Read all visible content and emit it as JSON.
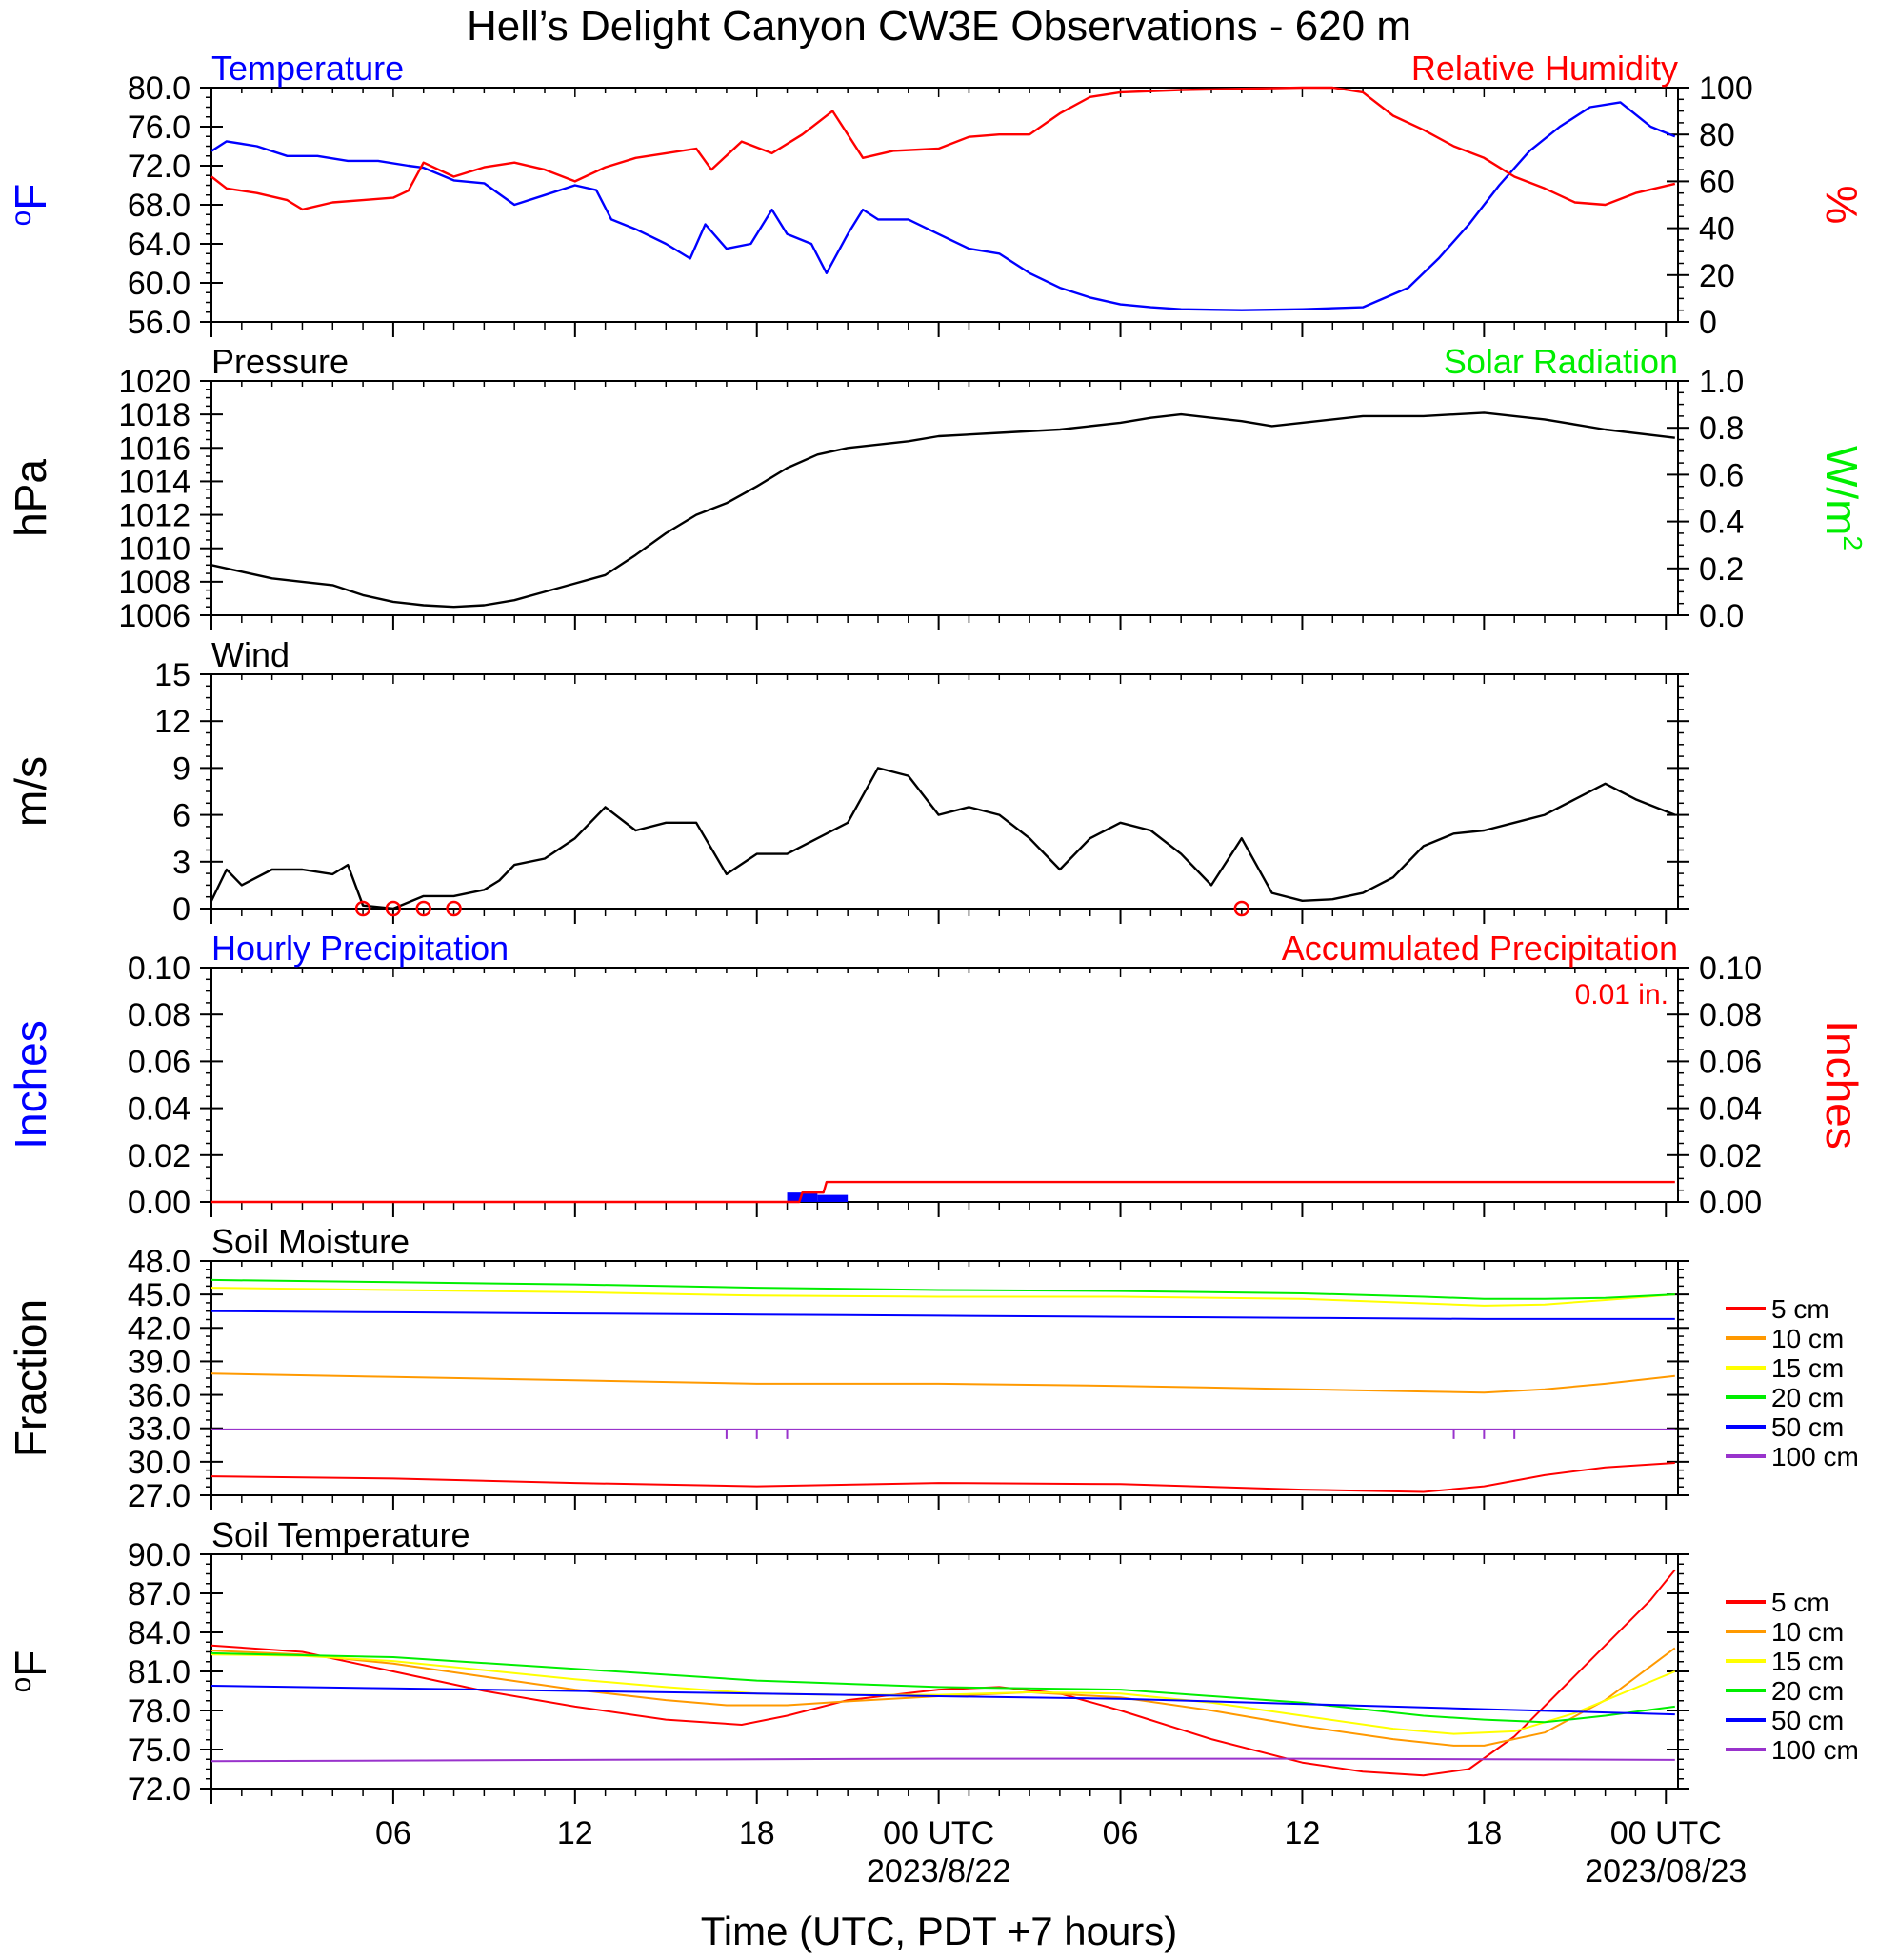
{
  "title": "Hell’s Delight Canyon CW3E Observations - 620 m",
  "x_axis": {
    "label": "Time (UTC, PDT +7 hours)",
    "range_hours": [
      0,
      48.4
    ],
    "tick_hours": [
      6,
      12,
      18,
      24,
      30,
      36,
      42,
      48
    ],
    "tick_labels": [
      "06",
      "12",
      "18",
      "00 UTC",
      "06",
      "12",
      "18",
      "00 UTC"
    ],
    "date_labels": [
      {
        "hour": 24,
        "text": "2023/8/22"
      },
      {
        "hour": 48,
        "text": "2023/08/23"
      }
    ]
  },
  "chart_data": [
    {
      "type": "line",
      "left_title": "Temperature",
      "right_title": "Relative Humidity",
      "left_unit": "oF",
      "right_unit": "%",
      "left_ticks": [
        "80.0",
        "76.0",
        "72.0",
        "68.0",
        "64.0",
        "60.0",
        "56.0"
      ],
      "right_ticks": [
        "100",
        "80",
        "60",
        "40",
        "20",
        "0"
      ],
      "ylim": [
        56,
        80
      ],
      "y2lim": [
        0,
        100
      ],
      "series": [
        {
          "name": "Temperature",
          "color": "#0000ff",
          "axis": "left",
          "x": [
            0,
            0.5,
            1.5,
            2.5,
            3.5,
            4.5,
            5.5,
            6.5,
            7.0,
            8.0,
            9.0,
            10.0,
            11.0,
            12.0,
            12.7,
            13.2,
            14.0,
            15.0,
            15.8,
            16.3,
            17.0,
            17.8,
            18.5,
            19.0,
            19.8,
            20.3,
            21.0,
            21.5,
            22.0,
            23.0,
            24.0,
            25.0,
            26.0,
            27.0,
            28.0,
            29.0,
            30.0,
            31.0,
            32.0,
            34.0,
            36.0,
            38.0,
            39.5,
            40.5,
            41.5,
            42.5,
            43.5,
            44.5,
            45.5,
            46.5,
            47.5,
            48.3
          ],
          "y": [
            73.5,
            74.5,
            74,
            73,
            73,
            72.5,
            72.5,
            72,
            71.8,
            70.5,
            70.2,
            68,
            69,
            70,
            69.5,
            66.5,
            65.5,
            64,
            62.5,
            66,
            63.5,
            64,
            67.5,
            65,
            64,
            61,
            65,
            67.5,
            66.5,
            66.5,
            65,
            63.5,
            63,
            61,
            59.5,
            58.5,
            57.8,
            57.5,
            57.3,
            57.2,
            57.3,
            57.5,
            59.5,
            62.5,
            66,
            70,
            73.5,
            76,
            78,
            78.5,
            76,
            75
          ]
        },
        {
          "name": "Relative Humidity",
          "color": "#ff0000",
          "axis": "right",
          "x": [
            0,
            0.5,
            1.5,
            2.5,
            3.0,
            4.0,
            5.0,
            6.0,
            6.5,
            7.0,
            8.0,
            9.0,
            10.0,
            11.0,
            12.0,
            13.0,
            14.0,
            15.0,
            16.0,
            16.5,
            17.5,
            18.5,
            19.5,
            20.5,
            21.5,
            22.5,
            24.0,
            25.0,
            26.0,
            27.0,
            28.0,
            29.0,
            30.0,
            32.0,
            34.0,
            36.0,
            37.0,
            38.0,
            39.0,
            40.0,
            41.0,
            42.0,
            43.0,
            44.0,
            45.0,
            46.0,
            47.0,
            48.3
          ],
          "y": [
            62,
            57,
            55,
            52,
            48,
            51,
            52,
            53,
            56,
            68,
            62,
            66,
            68,
            65,
            60,
            66,
            70,
            72,
            74,
            65,
            77,
            72,
            80,
            90,
            70,
            73,
            74,
            79,
            80,
            80,
            89,
            96,
            98,
            99,
            99.5,
            100,
            100,
            98,
            88,
            82,
            75,
            70,
            62,
            57,
            51,
            50,
            55,
            59
          ]
        }
      ]
    },
    {
      "type": "line",
      "left_title": "Pressure",
      "right_title": "Solar Radiation",
      "left_unit": "hPa",
      "right_unit": "W/m²",
      "left_ticks": [
        "1020",
        "1018",
        "1016",
        "1014",
        "1012",
        "1010",
        "1008",
        "1006"
      ],
      "right_ticks": [
        "1.0",
        "0.8",
        "0.6",
        "0.4",
        "0.2",
        "0.0"
      ],
      "ylim": [
        1006,
        1020
      ],
      "y2lim": [
        0,
        1.0
      ],
      "series": [
        {
          "name": "Pressure",
          "color": "#000000",
          "axis": "left",
          "x": [
            0,
            1,
            2,
            3,
            4,
            5,
            6,
            7,
            8,
            9,
            10,
            11,
            12,
            13,
            14,
            15,
            16,
            17,
            18,
            19,
            20,
            21,
            22,
            23,
            24,
            26,
            28,
            30,
            31,
            32,
            34,
            35,
            36,
            38,
            40,
            42,
            44,
            46,
            48.3
          ],
          "y": [
            1009,
            1008.6,
            1008.2,
            1008,
            1007.8,
            1007.2,
            1006.8,
            1006.6,
            1006.5,
            1006.6,
            1006.9,
            1007.4,
            1007.9,
            1008.4,
            1009.6,
            1010.9,
            1012,
            1012.7,
            1013.7,
            1014.8,
            1015.6,
            1016,
            1016.2,
            1016.4,
            1016.7,
            1016.9,
            1017.1,
            1017.5,
            1017.8,
            1018,
            1017.6,
            1017.3,
            1017.5,
            1017.9,
            1017.9,
            1018.1,
            1017.7,
            1017.1,
            1016.6
          ]
        }
      ]
    },
    {
      "type": "line",
      "left_title": "Wind",
      "left_unit": "m/s",
      "left_ticks": [
        "15",
        "12",
        "9",
        "6",
        "3",
        "0"
      ],
      "ylim": [
        0,
        15
      ],
      "calm_hours": [
        5,
        6,
        7,
        8,
        34
      ],
      "series": [
        {
          "name": "Wind",
          "color": "#000000",
          "axis": "left",
          "x": [
            0,
            0.5,
            1,
            2,
            3,
            4,
            4.5,
            5,
            6,
            7,
            8,
            9,
            9.5,
            10,
            11,
            12,
            13,
            14,
            15,
            16,
            17,
            18,
            19,
            20,
            21,
            22,
            23,
            24,
            25,
            26,
            27,
            28,
            29,
            30,
            31,
            32,
            33,
            34,
            35,
            36,
            37,
            38,
            39,
            40,
            41,
            42,
            43,
            44,
            45,
            46,
            47,
            48.3
          ],
          "y": [
            0.5,
            2.5,
            1.5,
            2.5,
            2.5,
            2.2,
            2.8,
            0.2,
            0,
            0.8,
            0.8,
            1.2,
            1.8,
            2.8,
            3.2,
            4.5,
            6.5,
            5,
            5.5,
            5.5,
            2.2,
            3.5,
            3.5,
            4.5,
            5.5,
            9,
            8.5,
            6,
            6.5,
            6,
            4.5,
            2.5,
            4.5,
            5.5,
            5,
            3.5,
            1.5,
            4.5,
            1,
            0.5,
            0.6,
            1,
            2,
            4,
            4.8,
            5,
            5.5,
            6,
            7,
            8,
            7,
            6
          ]
        }
      ]
    },
    {
      "type": "line",
      "left_title": "Hourly Precipitation",
      "right_title": "Accumulated Precipitation",
      "annotation": "0.01 in.",
      "left_unit": "Inches",
      "right_unit": "Inches",
      "left_ticks": [
        "0.10",
        "0.08",
        "0.06",
        "0.04",
        "0.02",
        "0.00"
      ],
      "right_ticks": [
        "0.10",
        "0.08",
        "0.06",
        "0.04",
        "0.02",
        "0.00"
      ],
      "ylim": [
        0,
        0.1
      ],
      "y2lim": [
        0,
        0.1
      ],
      "hourly_bars": [
        {
          "start_hour": 19,
          "end_hour": 20,
          "value": 0.004
        },
        {
          "start_hour": 20,
          "end_hour": 21,
          "value": 0.003
        }
      ],
      "series": [
        {
          "name": "Accumulated Precipitation",
          "color": "#ff0000",
          "axis": "right",
          "x": [
            0,
            19.4,
            19.5,
            20.2,
            20.3,
            48.3
          ],
          "y": [
            0,
            0,
            0.004,
            0.004,
            0.0085,
            0.0085
          ]
        }
      ]
    },
    {
      "type": "line",
      "left_title": "Soil Moisture",
      "left_unit": "Fraction",
      "left_ticks": [
        "48.0",
        "45.0",
        "42.0",
        "39.0",
        "36.0",
        "33.0",
        "30.0",
        "27.0"
      ],
      "ylim": [
        27,
        48
      ],
      "series": [
        {
          "name": "5 cm",
          "color": "#ff0000",
          "x": [
            0,
            6,
            12,
            18,
            24,
            30,
            36,
            40,
            42,
            44,
            46,
            48.3
          ],
          "y": [
            28.7,
            28.5,
            28.1,
            27.8,
            28.1,
            28,
            27.5,
            27.3,
            27.8,
            28.8,
            29.5,
            29.9
          ]
        },
        {
          "name": "10 cm",
          "color": "#ff9900",
          "x": [
            0,
            6,
            12,
            18,
            24,
            30,
            36,
            40,
            42,
            44,
            46,
            48.3
          ],
          "y": [
            37.9,
            37.6,
            37.3,
            37.0,
            37.0,
            36.8,
            36.5,
            36.3,
            36.2,
            36.5,
            37.0,
            37.7
          ]
        },
        {
          "name": "15 cm",
          "color": "#ffff00",
          "x": [
            0,
            6,
            12,
            18,
            24,
            30,
            36,
            40,
            42,
            44,
            46,
            48.3
          ],
          "y": [
            45.6,
            45.4,
            45.2,
            44.9,
            44.8,
            44.8,
            44.6,
            44.2,
            44.0,
            44.1,
            44.5,
            45.0
          ]
        },
        {
          "name": "20 cm",
          "color": "#00ee00",
          "x": [
            0,
            6,
            12,
            18,
            24,
            30,
            36,
            40,
            42,
            44,
            46,
            48.3
          ],
          "y": [
            46.3,
            46.1,
            45.9,
            45.6,
            45.4,
            45.3,
            45.1,
            44.8,
            44.6,
            44.6,
            44.7,
            45.0
          ]
        },
        {
          "name": "50 cm",
          "color": "#0000ff",
          "x": [
            0,
            6,
            12,
            18,
            24,
            30,
            36,
            42,
            48.3
          ],
          "y": [
            43.5,
            43.4,
            43.3,
            43.2,
            43.1,
            43.0,
            42.9,
            42.8,
            42.8
          ]
        },
        {
          "name": "100 cm",
          "color": "#9933cc",
          "x": [
            0,
            48.3
          ],
          "y": [
            32.9,
            32.9
          ],
          "dip_hours": [
            17,
            18,
            19,
            41,
            42,
            43
          ]
        }
      ]
    },
    {
      "type": "line",
      "left_title": "Soil Temperature",
      "left_unit": "oF",
      "left_ticks": [
        "90.0",
        "87.0",
        "84.0",
        "81.0",
        "78.0",
        "75.0",
        "72.0"
      ],
      "ylim": [
        72,
        90
      ],
      "series": [
        {
          "name": "5 cm",
          "color": "#ff0000",
          "x": [
            0,
            3,
            6,
            9,
            12,
            15,
            17.5,
            19,
            21,
            24,
            26,
            28,
            30,
            33,
            36,
            38,
            40,
            41.5,
            43,
            44.5,
            46,
            47.5,
            48.3
          ],
          "y": [
            83,
            82.5,
            81,
            79.5,
            78.3,
            77.3,
            76.9,
            77.6,
            78.8,
            79.6,
            79.8,
            79.3,
            78,
            75.8,
            74,
            73.3,
            73,
            73.5,
            76,
            79.5,
            83,
            86.5,
            88.8
          ]
        },
        {
          "name": "10 cm",
          "color": "#ff9900",
          "x": [
            0,
            3,
            6,
            9,
            12,
            15,
            17,
            19,
            21,
            24,
            27,
            30,
            33,
            36,
            39,
            41,
            42,
            44,
            46,
            48.3
          ],
          "y": [
            82.6,
            82.3,
            81.6,
            80.6,
            79.6,
            78.8,
            78.4,
            78.4,
            78.7,
            79.1,
            79.4,
            79.0,
            78.0,
            76.8,
            75.8,
            75.3,
            75.3,
            76.3,
            78.8,
            82.8
          ]
        },
        {
          "name": "15 cm",
          "color": "#ffff00",
          "x": [
            0,
            3,
            6,
            9,
            12,
            15,
            18,
            21,
            24,
            27,
            30,
            33,
            36,
            39,
            41,
            43,
            45,
            48.3
          ],
          "y": [
            82.3,
            82.2,
            81.8,
            81.1,
            80.4,
            79.8,
            79.3,
            79.2,
            79.2,
            79.4,
            79.3,
            78.6,
            77.6,
            76.6,
            76.2,
            76.4,
            77.8,
            81.0
          ]
        },
        {
          "name": "20 cm",
          "color": "#00ee00",
          "x": [
            0,
            6,
            12,
            18,
            24,
            30,
            36,
            40,
            42,
            44,
            46,
            48.3
          ],
          "y": [
            82.4,
            82.1,
            81.2,
            80.3,
            79.8,
            79.6,
            78.6,
            77.6,
            77.3,
            77.1,
            77.6,
            78.3
          ]
        },
        {
          "name": "50 cm",
          "color": "#0000ff",
          "x": [
            0,
            6,
            12,
            18,
            24,
            30,
            36,
            42,
            48.3
          ],
          "y": [
            79.9,
            79.7,
            79.5,
            79.3,
            79.1,
            78.9,
            78.5,
            78.1,
            77.7
          ]
        },
        {
          "name": "100 cm",
          "color": "#9933cc",
          "x": [
            0,
            12,
            24,
            36,
            48.3
          ],
          "y": [
            74.1,
            74.2,
            74.3,
            74.3,
            74.2
          ]
        }
      ]
    }
  ],
  "legend": [
    "5 cm",
    "10 cm",
    "15 cm",
    "20 cm",
    "50 cm",
    "100 cm"
  ]
}
